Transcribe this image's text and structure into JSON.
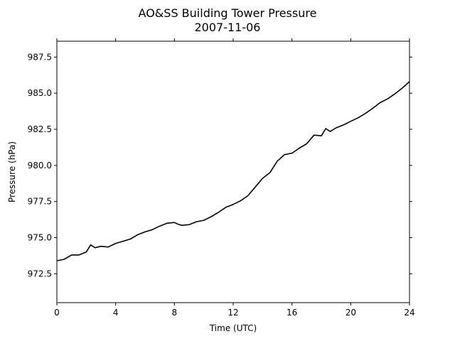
{
  "chart_data": {
    "type": "line",
    "title": "AO&SS Building Tower Pressure",
    "subtitle": "2007-11-06",
    "xlabel": "Time (UTC)",
    "ylabel": "Pressure (hPa)",
    "xlim": [
      0,
      24
    ],
    "ylim": [
      970.5,
      988.6
    ],
    "xticks": [
      0,
      4,
      8,
      12,
      16,
      20,
      24
    ],
    "yticks": [
      972.5,
      975.0,
      977.5,
      980.0,
      982.5,
      985.0,
      987.5
    ],
    "ytick_labels": [
      "972.5",
      "975.0",
      "977.5",
      "980.0",
      "982.5",
      "985.0",
      "987.5"
    ],
    "grid": false,
    "line_color": "#000000",
    "series": [
      {
        "x": [
          0,
          0.5,
          1,
          1.5,
          2,
          2.3,
          2.6,
          3,
          3.5,
          4,
          4.5,
          5,
          5.5,
          6,
          6.5,
          7,
          7.5,
          8,
          8.2,
          8.5,
          9,
          9.5,
          10,
          10.5,
          11,
          11.5,
          12,
          12.5,
          13,
          13.5,
          14,
          14.5,
          15,
          15.5,
          16,
          16.5,
          17,
          17.5,
          18,
          18.3,
          18.6,
          19,
          19.5,
          20,
          20.5,
          21,
          21.5,
          22,
          22.5,
          23,
          23.5,
          24
        ],
        "y": [
          973.4,
          973.5,
          973.8,
          973.8,
          974.0,
          974.5,
          974.3,
          974.4,
          974.35,
          974.6,
          974.75,
          974.9,
          975.2,
          975.4,
          975.55,
          975.8,
          976.0,
          976.05,
          975.95,
          975.85,
          975.9,
          976.1,
          976.2,
          976.45,
          976.75,
          977.1,
          977.3,
          977.55,
          977.9,
          978.5,
          979.1,
          979.5,
          980.3,
          980.75,
          980.85,
          981.2,
          981.5,
          982.1,
          982.05,
          982.55,
          982.35,
          982.6,
          982.8,
          983.05,
          983.3,
          983.6,
          983.95,
          984.35,
          984.6,
          984.95,
          985.35,
          985.8
        ]
      }
    ]
  }
}
